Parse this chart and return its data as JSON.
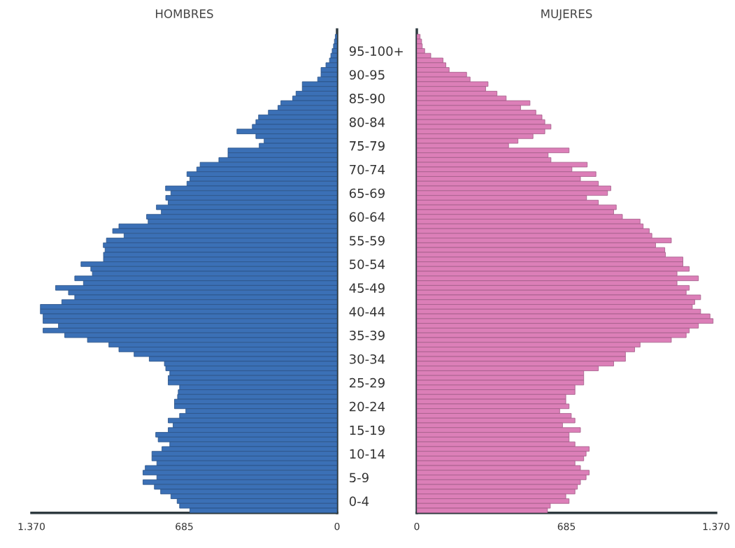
{
  "chart_data": [
    {
      "type": "bar",
      "orientation": "horizontal",
      "title": "HOMBRES",
      "color": "#3b70b6",
      "categories": [
        null,
        null,
        null,
        "95-100+",
        null,
        null,
        null,
        null,
        "90-95",
        null,
        null,
        null,
        null,
        "85-90",
        null,
        null,
        null,
        null,
        "80-84",
        null,
        null,
        null,
        null,
        "75-79",
        null,
        null,
        null,
        null,
        "70-74",
        null,
        null,
        null,
        null,
        "65-69",
        null,
        null,
        null,
        null,
        "60-64",
        null,
        null,
        null,
        null,
        "55-59",
        null,
        null,
        null,
        null,
        "50-54",
        null,
        null,
        null,
        null,
        "45-49",
        null,
        null,
        null,
        null,
        "40-44",
        null,
        null,
        null,
        null,
        "35-39",
        null,
        null,
        null,
        null,
        "30-34",
        null,
        null,
        null,
        null,
        "25-29",
        null,
        null,
        null,
        null,
        "20-24",
        null,
        null,
        null,
        null,
        "15-19",
        null,
        null,
        null,
        null,
        "10-14",
        null,
        null,
        null,
        null,
        "5-9",
        null,
        null,
        null,
        null,
        "0-4",
        null,
        null
      ],
      "values": [
        8,
        12,
        16,
        22,
        28,
        34,
        50,
        72,
        72,
        87,
        156,
        156,
        184,
        199,
        252,
        265,
        308,
        352,
        364,
        380,
        449,
        364,
        327,
        349,
        489,
        489,
        530,
        614,
        629,
        673,
        660,
        673,
        769,
        745,
        768,
        757,
        810,
        788,
        854,
        847,
        978,
        1006,
        955,
        1034,
        1048,
        1040,
        1047,
        1047,
        1148,
        1104,
        1097,
        1176,
        1137,
        1262,
        1204,
        1176,
        1234,
        1330,
        1330,
        1318,
        1318,
        1249,
        1318,
        1221,
        1119,
        1023,
        978,
        910,
        842,
        774,
        768,
        750,
        757,
        757,
        706,
        712,
        715,
        729,
        729,
        678,
        706,
        757,
        735,
        757,
        813,
        802,
        750,
        785,
        830,
        830,
        808,
        860,
        870,
        808,
        870,
        819,
        791,
        745,
        717,
        706,
        660
      ],
      "xlim": [
        1370,
        0
      ],
      "xticks": [
        {
          "value": 1370,
          "label": "1.370"
        },
        685,
        0
      ]
    },
    {
      "type": "bar",
      "orientation": "horizontal",
      "title": "MUJERES",
      "color": "#dc7fb8",
      "categories": [
        null,
        null,
        null,
        null,
        null,
        null,
        null,
        null,
        null,
        null,
        null,
        null,
        null,
        null,
        null,
        null,
        null,
        null,
        null,
        null,
        null,
        null,
        null,
        null,
        null,
        null,
        null,
        null,
        null,
        null,
        null,
        null,
        null,
        null,
        null,
        null,
        null,
        null,
        null,
        null,
        null,
        null,
        null,
        null,
        null,
        null,
        null,
        null,
        null,
        null,
        null,
        null,
        null,
        null,
        null,
        null,
        null,
        null,
        null,
        null,
        null,
        null,
        null,
        null,
        null,
        null,
        null,
        null,
        null,
        null,
        null,
        null,
        null,
        null,
        null,
        null,
        null,
        null,
        null,
        null,
        null,
        null,
        null,
        null,
        null,
        null,
        null,
        null,
        null,
        null,
        null,
        null,
        null,
        null,
        null,
        null,
        null,
        null,
        null,
        null,
        null
      ],
      "values": [
        15,
        22,
        25,
        36,
        64,
        120,
        133,
        148,
        228,
        244,
        326,
        315,
        367,
        409,
        518,
        475,
        545,
        573,
        586,
        614,
        586,
        532,
        463,
        420,
        697,
        601,
        614,
        780,
        710,
        820,
        749,
        831,
        888,
        873,
        777,
        831,
        913,
        901,
        941,
        1022,
        1036,
        1064,
        1076,
        1165,
        1093,
        1135,
        1138,
        1218,
        1218,
        1247,
        1191,
        1289,
        1191,
        1247,
        1233,
        1299,
        1272,
        1261,
        1299,
        1342,
        1356,
        1289,
        1247,
        1233,
        1165,
        1022,
        997,
        955,
        955,
        901,
        831,
        764,
        764,
        764,
        724,
        724,
        682,
        682,
        697,
        654,
        707,
        724,
        667,
        749,
        697,
        697,
        724,
        789,
        775,
        764,
        724,
        749,
        789,
        775,
        749,
        735,
        724,
        682,
        697,
        611,
        598
      ],
      "xlim": [
        0,
        1370
      ],
      "xticks": [
        0,
        685,
        {
          "value": 1370,
          "label": "1.370"
        }
      ]
    }
  ]
}
